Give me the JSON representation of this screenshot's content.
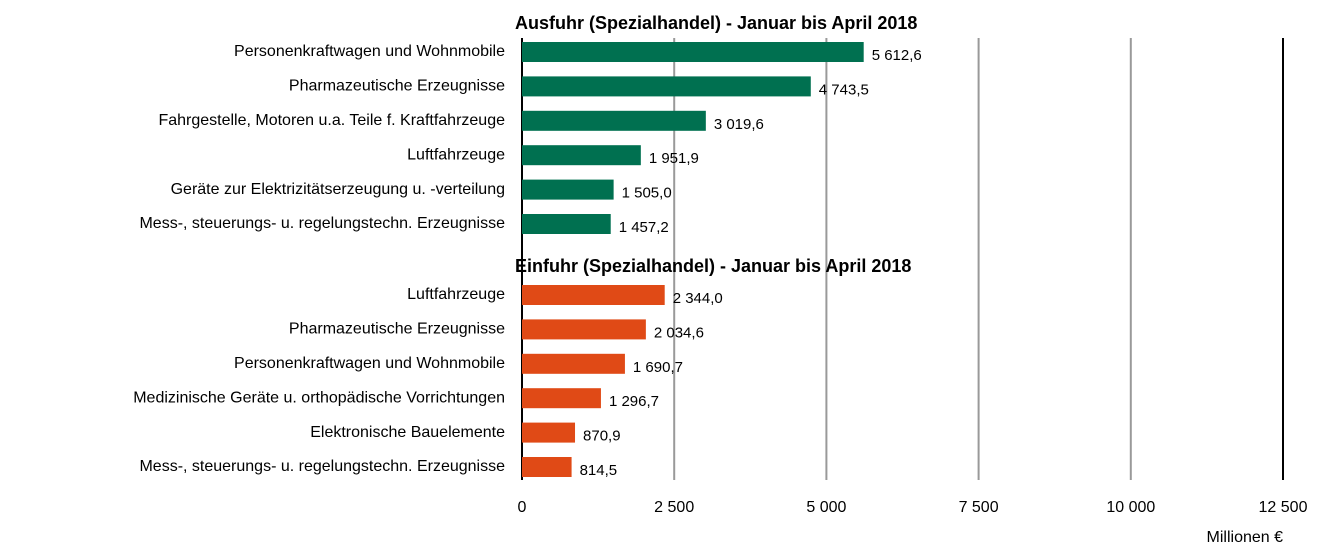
{
  "chart_data": {
    "type": "bar",
    "panels": [
      {
        "title": "Ausfuhr (Spezialhandel) - Januar bis April 2018",
        "color": "#007050",
        "categories": [
          "Personenkraftwagen und Wohnmobile",
          "Pharmazeutische Erzeugnisse",
          "Fahrgestelle, Motoren u.a. Teile f. Kraftfahrzeuge",
          "Luftfahrzeuge",
          "Geräte zur Elektrizitätserzeugung u. -verteilung",
          "Mess-, steuerungs- u. regelungstechn. Erzeugnisse"
        ],
        "values": [
          5612.6,
          4743.5,
          3019.6,
          1951.9,
          1505.0,
          1457.2
        ],
        "value_labels": [
          "5 612,6",
          "4 743,5",
          "3 019,6",
          "1 951,9",
          "1 505,0",
          "1 457,2"
        ]
      },
      {
        "title": "Einfuhr (Spezialhandel) - Januar bis April 2018",
        "color": "#e04a16",
        "categories": [
          "Luftfahrzeuge",
          "Pharmazeutische Erzeugnisse",
          "Personenkraftwagen und Wohnmobile",
          "Medizinische Geräte u. orthopädische Vorrichtungen",
          "Elektronische Bauelemente",
          "Mess-, steuerungs- u. regelungstechn. Erzeugnisse"
        ],
        "values": [
          2344.0,
          2034.6,
          1690.7,
          1296.7,
          870.9,
          814.5
        ],
        "value_labels": [
          "2 344,0",
          "2 034,6",
          "1 690,7",
          "1 296,7",
          "870,9",
          "814,5"
        ]
      }
    ],
    "xlabel": "Millionen €",
    "xlim": [
      0,
      12500
    ],
    "xticks": [
      0,
      {
        "value": 2500,
        "label": "2 500"
      },
      {
        "value": 5000,
        "label": "5 000"
      },
      {
        "value": 7500,
        "label": "7 500"
      },
      {
        "value": 10000,
        "label": "10 000"
      },
      {
        "value": 12500,
        "label": "12 500"
      }
    ],
    "grid": true
  }
}
